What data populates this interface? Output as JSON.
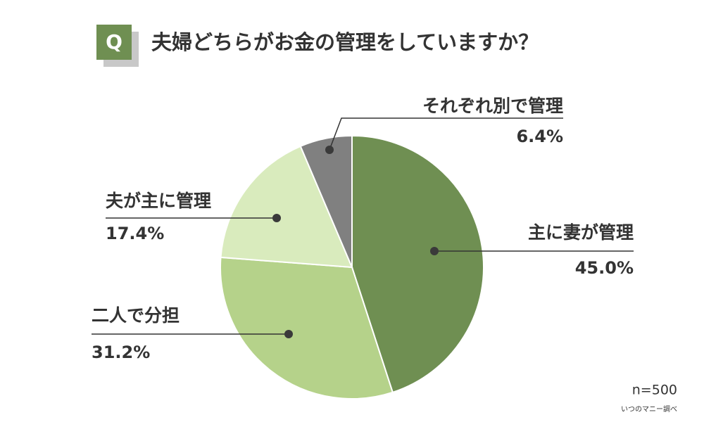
{
  "chart_data": {
    "type": "pie",
    "badge": "Q",
    "title": "夫婦どちらがお金の管理をしていますか？",
    "categories": [
      "主に妻が管理",
      "二人で分担",
      "夫が主に管理",
      "それぞれ別で管理"
    ],
    "values": [
      45.0,
      31.2,
      17.4,
      6.4
    ],
    "value_labels": [
      "45.0%",
      "31.2%",
      "17.4%",
      "6.4%"
    ],
    "colors": [
      "#6f8f52",
      "#b5d28a",
      "#d9ebbd",
      "#808080"
    ],
    "note": "n=500",
    "source": "いつのマニー調べ"
  }
}
